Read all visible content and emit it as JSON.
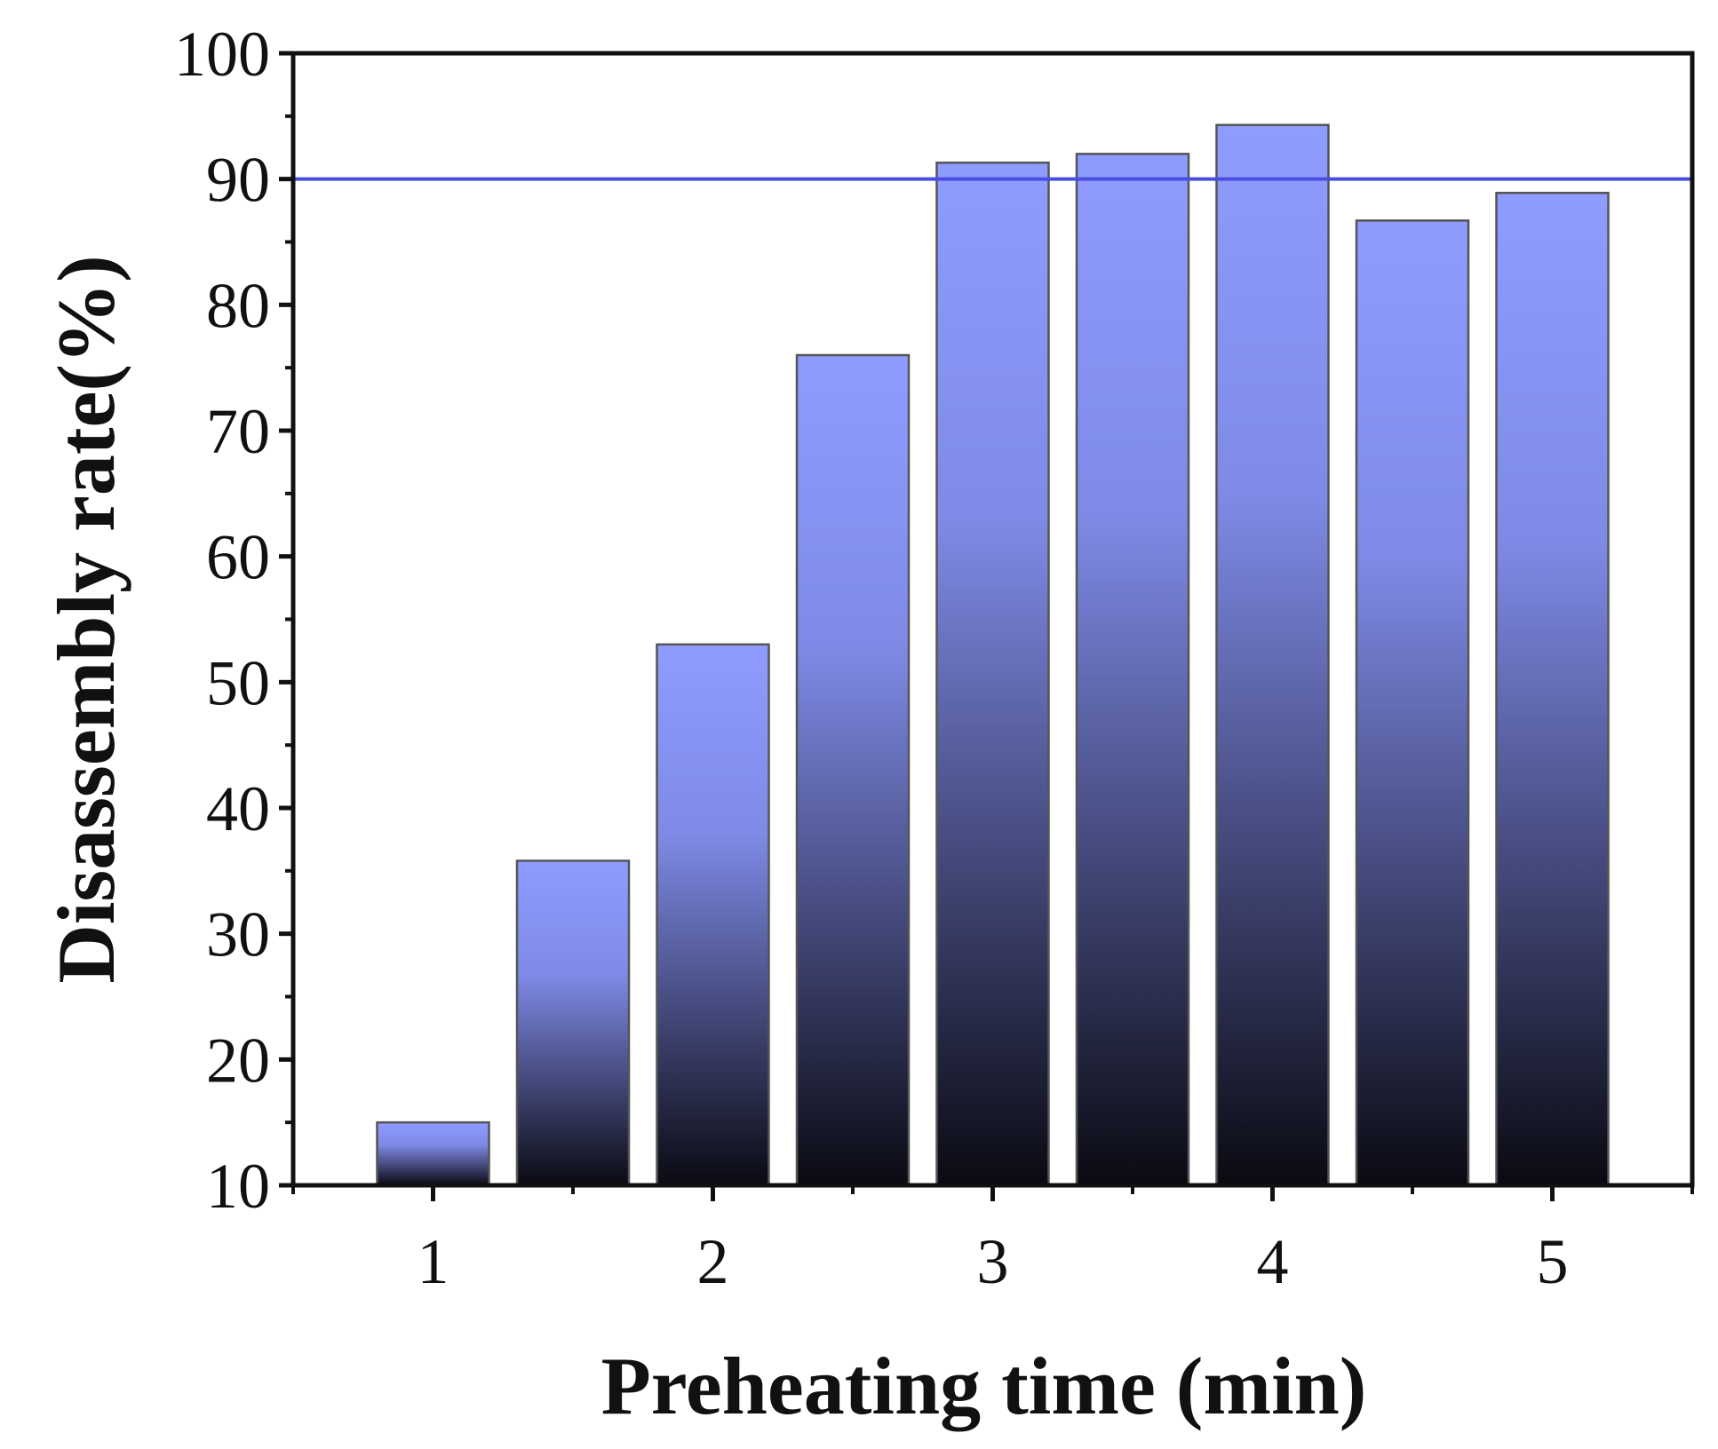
{
  "chart_data": {
    "type": "bar",
    "xlabel": "Preheating time (min)",
    "ylabel": "Disassembly rate(%)",
    "xlim": [
      0.5,
      5.5
    ],
    "ylim": [
      10,
      100
    ],
    "x_ticks": [
      "1",
      "2",
      "3",
      "4",
      "5"
    ],
    "x_tick_values": [
      1,
      2,
      3,
      4,
      5
    ],
    "y_ticks": [
      "10",
      "20",
      "30",
      "40",
      "50",
      "60",
      "70",
      "80",
      "90",
      "100"
    ],
    "y_tick_values": [
      10,
      20,
      30,
      40,
      50,
      60,
      70,
      80,
      90,
      100
    ],
    "x": [
      1.0,
      1.5,
      2.0,
      2.5,
      3.0,
      3.5,
      4.0,
      4.5,
      5.0
    ],
    "values": [
      15,
      35.8,
      53,
      76,
      91.3,
      92,
      94.3,
      86.7,
      88.9
    ],
    "bar_width": 0.4,
    "reference_line": {
      "y": 90,
      "color": "#4a4ee0"
    },
    "bar_gradient": {
      "top": "#8f9cff",
      "bottom": "#0a0a12"
    },
    "grid": false,
    "legend": "none"
  }
}
